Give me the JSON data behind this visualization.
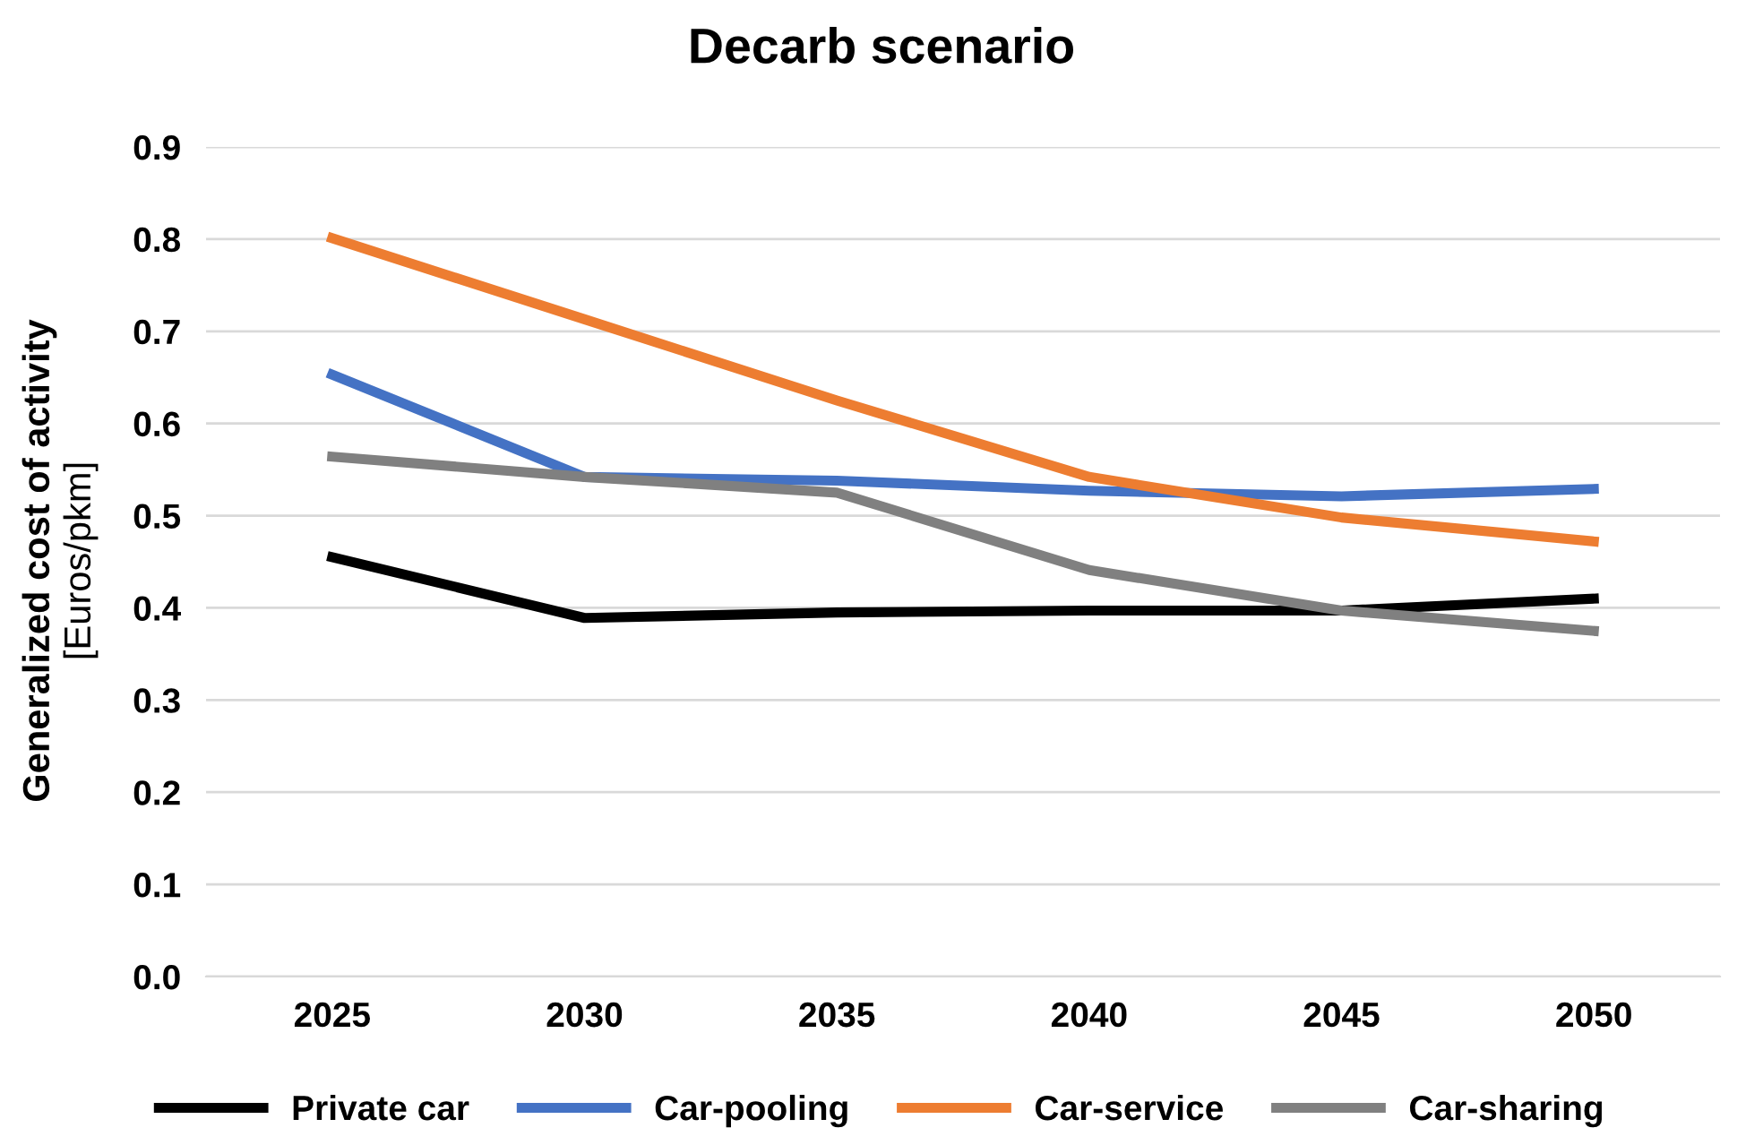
{
  "chart_data": {
    "type": "line",
    "title": "Decarb scenario",
    "ylabel": "Generalized cost of activity\n[Euros/pkm]",
    "categories": [
      "2025",
      "2030",
      "2035",
      "2040",
      "2045",
      "2050"
    ],
    "series": [
      {
        "name": "Private car",
        "color": "#000000",
        "values": [
          0.455,
          0.389,
          0.395,
          0.397,
          0.397,
          0.41
        ]
      },
      {
        "name": "Car-pooling",
        "color": "#4472c4",
        "values": [
          0.653,
          0.542,
          0.538,
          0.527,
          0.521,
          0.529
        ]
      },
      {
        "name": "Car-service",
        "color": "#ed7d31",
        "values": [
          0.801,
          0.713,
          0.625,
          0.542,
          0.498,
          0.472
        ]
      },
      {
        "name": "Car-sharing",
        "color": "#808080",
        "values": [
          0.564,
          0.542,
          0.525,
          0.441,
          0.397,
          0.375
        ]
      }
    ],
    "ylim": [
      0,
      0.9
    ],
    "yticks": [
      {
        "value": 0,
        "label": "0.0"
      },
      {
        "value": 0.1,
        "label": "0.1"
      },
      {
        "value": 0.2,
        "label": "0.2"
      },
      {
        "value": 0.3,
        "label": "0.3"
      },
      {
        "value": 0.4,
        "label": "0.4"
      },
      {
        "value": 0.5,
        "label": "0.5"
      },
      {
        "value": 0.6,
        "label": "0.6"
      },
      {
        "value": 0.7,
        "label": "0.7"
      },
      {
        "value": 0.8,
        "label": "0.8"
      },
      {
        "value": 0.9,
        "label": "0.9"
      }
    ],
    "grid": "y",
    "legend": "bottom",
    "marker": "none",
    "line_style": "solid"
  }
}
